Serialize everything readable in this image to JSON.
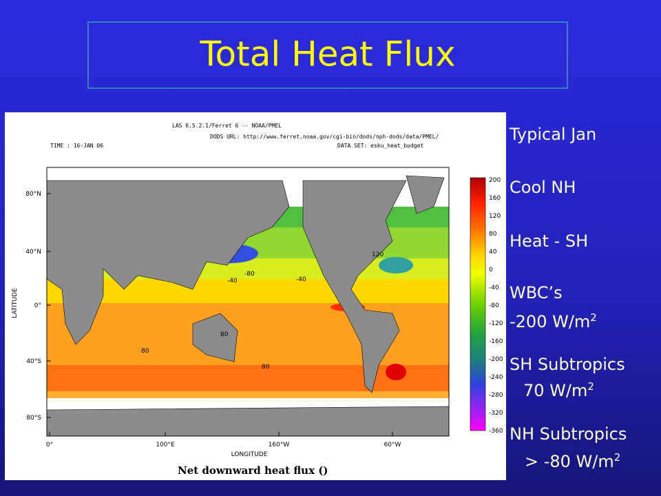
{
  "title": "Total Heat Flux",
  "notes": [
    {
      "text": "Typical Jan"
    },
    {
      "text": "Cool NH"
    },
    {
      "text": "Heat - SH"
    },
    {
      "text": "WBC’s"
    },
    {
      "text": "-200 W/m",
      "sup": "2"
    },
    {
      "text": "SH Subtropics"
    },
    {
      "text": "70 W/m",
      "sup": "2"
    },
    {
      "text": "NH Subtropics"
    },
    {
      "text": "> -80 W/m",
      "sup": "2"
    }
  ],
  "figure": {
    "header": [
      "LAS 6.5.2.1/Ferret 6 -- NOAA/PMEL",
      "DODS URL: http://www.ferret.noaa.gov/cgi-bin/dods/nph-dods/data/PMEL/",
      "TIME : 16-JAN 06",
      "DATA SET: esku_heat_budget"
    ],
    "y_label": "LATITUDE",
    "x_label": "LONGITUDE",
    "y_ticks": [
      "80°N",
      "40°N",
      "0°",
      "40°S",
      "80°S"
    ],
    "x_ticks": [
      "0°",
      "100°E",
      "160°W",
      "60°W"
    ],
    "colorbar_labels": [
      "200",
      "160",
      "120",
      "80",
      "40",
      "0",
      "-40",
      "-80",
      "-120",
      "-160",
      "-200",
      "-240",
      "-280",
      "-320",
      "-360"
    ],
    "contour_labels": [
      "-80",
      "-40",
      "-40",
      "120",
      "80",
      "80",
      "80"
    ],
    "caption": "Net downward heat flux ()"
  }
}
